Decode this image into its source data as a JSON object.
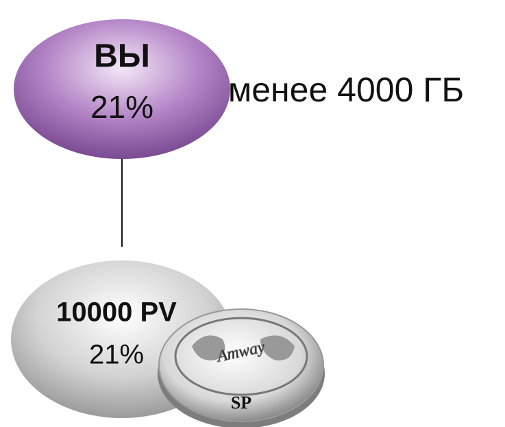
{
  "nodes": [
    {
      "label": "ВЫ",
      "percent": "21%",
      "note": "менее 4000 ГБ"
    },
    {
      "label": "10000 PV",
      "percent": "21%"
    }
  ],
  "badge": {
    "brand": "Amway",
    "code": "SP"
  }
}
